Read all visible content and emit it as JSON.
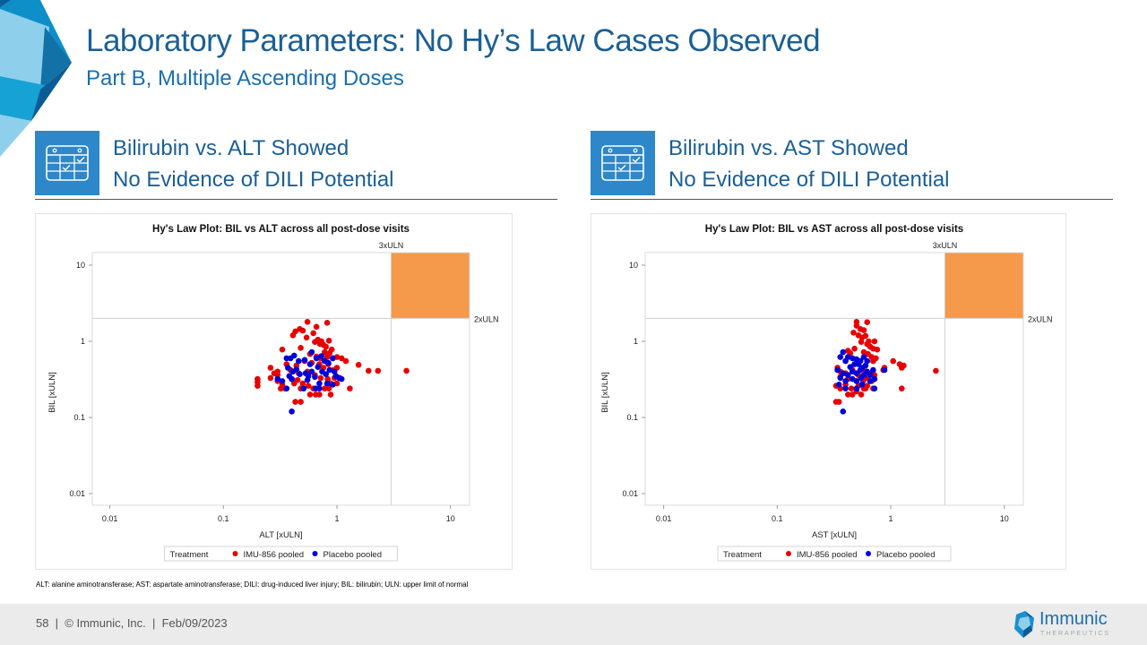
{
  "slide": {
    "title": "Laboratory Parameters: No Hy’s Law Cases Observed",
    "subtitle": "Part B, Multiple Ascending Doses",
    "footnote": "ALT: alanine aminotransferase; AST: aspartate aminotransferase; DILI: drug-induced liver injury; BIL: bilirubin; ULN: upper limit of normal",
    "footer": "58  |  © Immunic, Inc.  |  Feb/09/2023",
    "brand_name": "Immunic",
    "brand_sub": "THERAPEUTICS"
  },
  "sections": [
    {
      "line1": "Bilirubin vs. ALT Showed",
      "line2": "No Evidence of DILI Potential",
      "icon": "calendar-check-icon"
    },
    {
      "line1": "Bilirubin vs. AST Showed",
      "line2": "No Evidence of DILI Potential",
      "icon": "calendar-check-icon"
    }
  ],
  "colors": {
    "title": "#1a5f95",
    "accent": "#2e87c8",
    "imu": "#e80000",
    "placebo": "#0000d8",
    "hys_zone": "#f5994a"
  },
  "chart_data": [
    {
      "type": "scatter",
      "title": "Hy's Law Plot: BIL vs ALT across all post-dose visits",
      "xlabel": "ALT [xULN]",
      "ylabel": "BIL [xULN]",
      "xscale": "log",
      "yscale": "log",
      "xlim": [
        0.007,
        14.6
      ],
      "ylim": [
        0.0075,
        14.6
      ],
      "xticks": [
        "0.01",
        "0.1",
        "1",
        "10"
      ],
      "yticks": [
        "10",
        "1",
        "0.1",
        "0.01"
      ],
      "ref_lines": {
        "x": 3,
        "x_label": "3xULN",
        "y": 2,
        "y_label": "2xULN"
      },
      "legend": {
        "title": "Treatment",
        "position": "bottom",
        "entries": [
          "IMU-856 pooled",
          "Placebo pooled"
        ]
      },
      "series": [
        {
          "name": "IMU-856 pooled",
          "points": [
            [
              0.55,
              1.8
            ],
            [
              0.82,
              1.75
            ],
            [
              0.47,
              1.45
            ],
            [
              0.43,
              1.35
            ],
            [
              0.5,
              1.38
            ],
            [
              0.66,
              1.55
            ],
            [
              0.41,
              1.2
            ],
            [
              0.62,
              1.28
            ],
            [
              0.54,
              1.12
            ],
            [
              0.68,
              1.05
            ],
            [
              0.73,
              1.0
            ],
            [
              0.85,
              1.02
            ],
            [
              0.64,
              0.98
            ],
            [
              0.71,
              0.92
            ],
            [
              0.76,
              0.9
            ],
            [
              0.8,
              0.85
            ],
            [
              0.9,
              0.78
            ],
            [
              0.78,
              0.72
            ],
            [
              0.86,
              0.7
            ],
            [
              0.33,
              0.78
            ],
            [
              0.48,
              0.82
            ],
            [
              0.58,
              0.68
            ],
            [
              0.66,
              0.63
            ],
            [
              0.72,
              0.6
            ],
            [
              0.82,
              0.62
            ],
            [
              0.92,
              0.6
            ],
            [
              1.0,
              0.62
            ],
            [
              1.1,
              0.6
            ],
            [
              1.2,
              0.55
            ],
            [
              1.55,
              0.49
            ],
            [
              1.9,
              0.41
            ],
            [
              2.3,
              0.41
            ],
            [
              4.1,
              0.41
            ],
            [
              0.26,
              0.45
            ],
            [
              0.36,
              0.5
            ],
            [
              0.39,
              0.42
            ],
            [
              0.44,
              0.48
            ],
            [
              0.52,
              0.55
            ],
            [
              0.6,
              0.52
            ],
            [
              0.7,
              0.5
            ],
            [
              0.76,
              0.45
            ],
            [
              0.84,
              0.5
            ],
            [
              0.93,
              0.42
            ],
            [
              1.0,
              0.45
            ],
            [
              0.3,
              0.4
            ],
            [
              0.3,
              0.36
            ],
            [
              0.4,
              0.32
            ],
            [
              0.46,
              0.38
            ],
            [
              0.55,
              0.4
            ],
            [
              0.64,
              0.36
            ],
            [
              0.72,
              0.33
            ],
            [
              0.83,
              0.32
            ],
            [
              0.95,
              0.33
            ],
            [
              1.05,
              0.33
            ],
            [
              0.2,
              0.32
            ],
            [
              0.2,
              0.29
            ],
            [
              0.2,
              0.26
            ],
            [
              0.3,
              0.3
            ],
            [
              0.33,
              0.27
            ],
            [
              0.35,
              0.24
            ],
            [
              0.42,
              0.28
            ],
            [
              0.5,
              0.28
            ],
            [
              0.56,
              0.26
            ],
            [
              0.62,
              0.24
            ],
            [
              0.48,
              0.24
            ],
            [
              0.58,
              0.2
            ],
            [
              0.65,
              0.2
            ],
            [
              0.7,
              0.2
            ],
            [
              0.78,
              0.24
            ],
            [
              0.85,
              0.24
            ],
            [
              0.88,
              0.2
            ],
            [
              0.32,
              0.24
            ],
            [
              1.3,
              0.24
            ],
            [
              0.43,
              0.16
            ],
            [
              0.48,
              0.16
            ],
            [
              0.45,
              0.31
            ],
            [
              0.26,
              0.33
            ],
            [
              0.28,
              0.38
            ],
            [
              0.88,
              0.28
            ],
            [
              1.0,
              0.28
            ]
          ]
        },
        {
          "name": "Placebo pooled",
          "points": [
            [
              0.39,
              0.6
            ],
            [
              0.42,
              0.65
            ],
            [
              0.36,
              0.6
            ],
            [
              0.46,
              0.55
            ],
            [
              0.52,
              0.57
            ],
            [
              0.6,
              0.72
            ],
            [
              0.66,
              0.6
            ],
            [
              0.73,
              0.64
            ],
            [
              0.78,
              0.55
            ],
            [
              0.84,
              0.52
            ],
            [
              0.92,
              0.6
            ],
            [
              0.37,
              0.45
            ],
            [
              0.41,
              0.4
            ],
            [
              0.44,
              0.43
            ],
            [
              0.47,
              0.37
            ],
            [
              0.38,
              0.35
            ],
            [
              0.4,
              0.32
            ],
            [
              0.53,
              0.38
            ],
            [
              0.56,
              0.35
            ],
            [
              0.6,
              0.4
            ],
            [
              0.64,
              0.34
            ],
            [
              0.74,
              0.4
            ],
            [
              0.8,
              0.37
            ],
            [
              0.86,
              0.42
            ],
            [
              0.95,
              0.4
            ],
            [
              0.98,
              0.35
            ],
            [
              1.05,
              0.33
            ],
            [
              1.1,
              0.32
            ],
            [
              0.3,
              0.32
            ],
            [
              0.33,
              0.3
            ],
            [
              0.55,
              0.31
            ],
            [
              0.7,
              0.28
            ],
            [
              0.82,
              0.28
            ],
            [
              0.36,
              0.24
            ],
            [
              0.51,
              0.24
            ],
            [
              0.65,
              0.24
            ],
            [
              0.7,
              0.24
            ],
            [
              0.92,
              0.27
            ],
            [
              0.4,
              0.12
            ],
            [
              0.58,
              0.5
            ],
            [
              0.68,
              0.46
            ]
          ]
        }
      ]
    },
    {
      "type": "scatter",
      "title": "Hy's Law Plot: BIL vs AST across all post-dose visits",
      "xlabel": "AST [xULN]",
      "ylabel": "BIL [xULN]",
      "xscale": "log",
      "yscale": "log",
      "xlim": [
        0.007,
        14.6
      ],
      "ylim": [
        0.0075,
        14.6
      ],
      "xticks": [
        "0.01",
        "0.1",
        "1",
        "10"
      ],
      "yticks": [
        "10",
        "1",
        "0.1",
        "0.01"
      ],
      "ref_lines": {
        "x": 3,
        "x_label": "3xULN",
        "y": 2,
        "y_label": "2xULN"
      },
      "legend": {
        "title": "Treatment",
        "position": "bottom",
        "entries": [
          "IMU-856 pooled",
          "Placebo pooled"
        ]
      },
      "series": [
        {
          "name": "IMU-856 pooled",
          "points": [
            [
              0.5,
              1.8
            ],
            [
              0.62,
              1.78
            ],
            [
              0.5,
              1.6
            ],
            [
              0.54,
              1.45
            ],
            [
              0.58,
              1.4
            ],
            [
              0.47,
              1.3
            ],
            [
              0.52,
              1.2
            ],
            [
              0.56,
              1.12
            ],
            [
              0.6,
              1.18
            ],
            [
              0.64,
              1.0
            ],
            [
              0.72,
              1.0
            ],
            [
              0.55,
              0.98
            ],
            [
              0.62,
              0.92
            ],
            [
              0.66,
              0.85
            ],
            [
              0.7,
              0.8
            ],
            [
              0.76,
              0.78
            ],
            [
              0.48,
              0.8
            ],
            [
              0.42,
              0.75
            ],
            [
              0.44,
              0.7
            ],
            [
              0.58,
              0.72
            ],
            [
              0.63,
              0.68
            ],
            [
              0.68,
              0.62
            ],
            [
              0.74,
              0.6
            ],
            [
              0.7,
              0.55
            ],
            [
              1.05,
              0.55
            ],
            [
              1.2,
              0.5
            ],
            [
              1.3,
              0.48
            ],
            [
              1.25,
              0.45
            ],
            [
              0.88,
              0.45
            ],
            [
              0.86,
              0.42
            ],
            [
              2.5,
              0.41
            ],
            [
              0.34,
              0.45
            ],
            [
              0.36,
              0.4
            ],
            [
              0.4,
              0.38
            ],
            [
              0.46,
              0.42
            ],
            [
              0.52,
              0.36
            ],
            [
              0.6,
              0.4
            ],
            [
              0.65,
              0.38
            ],
            [
              0.72,
              0.36
            ],
            [
              0.36,
              0.34
            ],
            [
              0.42,
              0.32
            ],
            [
              0.5,
              0.3
            ],
            [
              0.57,
              0.3
            ],
            [
              0.62,
              0.33
            ],
            [
              0.33,
              0.26
            ],
            [
              0.36,
              0.24
            ],
            [
              0.4,
              0.27
            ],
            [
              0.45,
              0.24
            ],
            [
              0.52,
              0.26
            ],
            [
              0.58,
              0.24
            ],
            [
              0.62,
              0.26
            ],
            [
              0.7,
              0.24
            ],
            [
              1.25,
              0.24
            ],
            [
              0.42,
              0.2
            ],
            [
              0.46,
              0.2
            ],
            [
              0.5,
              0.22
            ],
            [
              0.55,
              0.2
            ],
            [
              0.33,
              0.16
            ],
            [
              0.35,
              0.16
            ],
            [
              0.6,
              0.24
            ],
            [
              0.68,
              0.3
            ]
          ]
        },
        {
          "name": "Placebo pooled",
          "points": [
            [
              0.38,
              0.72
            ],
            [
              0.36,
              0.62
            ],
            [
              0.4,
              0.55
            ],
            [
              0.42,
              0.62
            ],
            [
              0.46,
              0.6
            ],
            [
              0.5,
              0.58
            ],
            [
              0.54,
              0.55
            ],
            [
              0.58,
              0.62
            ],
            [
              0.62,
              0.55
            ],
            [
              0.52,
              0.5
            ],
            [
              0.56,
              0.45
            ],
            [
              0.6,
              0.48
            ],
            [
              0.34,
              0.42
            ],
            [
              0.38,
              0.38
            ],
            [
              0.42,
              0.36
            ],
            [
              0.46,
              0.4
            ],
            [
              0.5,
              0.38
            ],
            [
              0.54,
              0.42
            ],
            [
              0.58,
              0.36
            ],
            [
              0.62,
              0.4
            ],
            [
              0.66,
              0.36
            ],
            [
              0.7,
              0.42
            ],
            [
              0.88,
              0.42
            ],
            [
              0.36,
              0.33
            ],
            [
              0.4,
              0.3
            ],
            [
              0.46,
              0.32
            ],
            [
              0.5,
              0.3
            ],
            [
              0.55,
              0.33
            ],
            [
              0.66,
              0.3
            ],
            [
              0.72,
              0.32
            ],
            [
              0.35,
              0.27
            ],
            [
              0.4,
              0.24
            ],
            [
              0.5,
              0.24
            ],
            [
              0.56,
              0.27
            ],
            [
              0.72,
              0.24
            ],
            [
              0.38,
              0.12
            ],
            [
              0.48,
              0.5
            ],
            [
              0.44,
              0.46
            ]
          ]
        }
      ]
    }
  ]
}
